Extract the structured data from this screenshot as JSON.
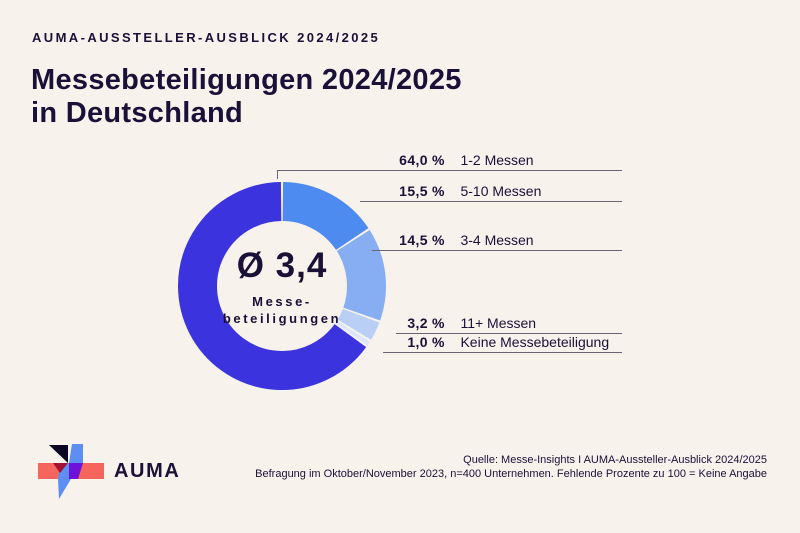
{
  "page": {
    "background": "#F8F2EC",
    "text_color": "#1A1138",
    "leader_line_color": "#6A6474"
  },
  "header": {
    "eyebrow": "AUMA-AUSSTELLER-AUSBLICK 2024/2025",
    "title_line1": "Messebeteiligungen 2024/2025",
    "title_line2": "in Deutschland"
  },
  "chart_data": {
    "type": "pie",
    "subtype": "donut",
    "title": "Messebeteiligungen 2024/2025 in Deutschland",
    "unit": "%",
    "legend_position": "right",
    "start_angle_deg": -90,
    "draw_order": [
      1,
      2,
      3,
      4,
      0
    ],
    "center": {
      "value": "Ø 3,4",
      "caption_line1": "Messe-",
      "caption_line2": "beteiligungen"
    },
    "segments": [
      {
        "label": "1-2 Messen",
        "value": 64.0,
        "display": "64,0",
        "color": "#3B33DE"
      },
      {
        "label": "5-10 Messen",
        "value": 15.5,
        "display": "15,5",
        "color": "#4D8BF0"
      },
      {
        "label": "3-4 Messen",
        "value": 14.5,
        "display": "14,5",
        "color": "#87AEF2"
      },
      {
        "label": "11+ Messen",
        "value": 3.2,
        "display": "3,2",
        "color": "#B9CFF6"
      },
      {
        "label": "Keine Messebeteiligung",
        "value": 1.0,
        "display": "1,0",
        "color": "#DDE7FA"
      }
    ]
  },
  "logo": {
    "wordmark": "AUMA",
    "colors": {
      "coral": "#F5655D",
      "black": "#0D0524",
      "crimson": "#A31235",
      "blue": "#5E8EF3",
      "purple": "#6C12DB"
    }
  },
  "footer": {
    "line1": "Quelle: Messe-Insights I AUMA-Aussteller-Ausblick 2024/2025",
    "line2": "Befragung im Oktober/November 2023, n=400 Unternehmen. Fehlende Prozente zu 100 = Keine Angabe"
  }
}
